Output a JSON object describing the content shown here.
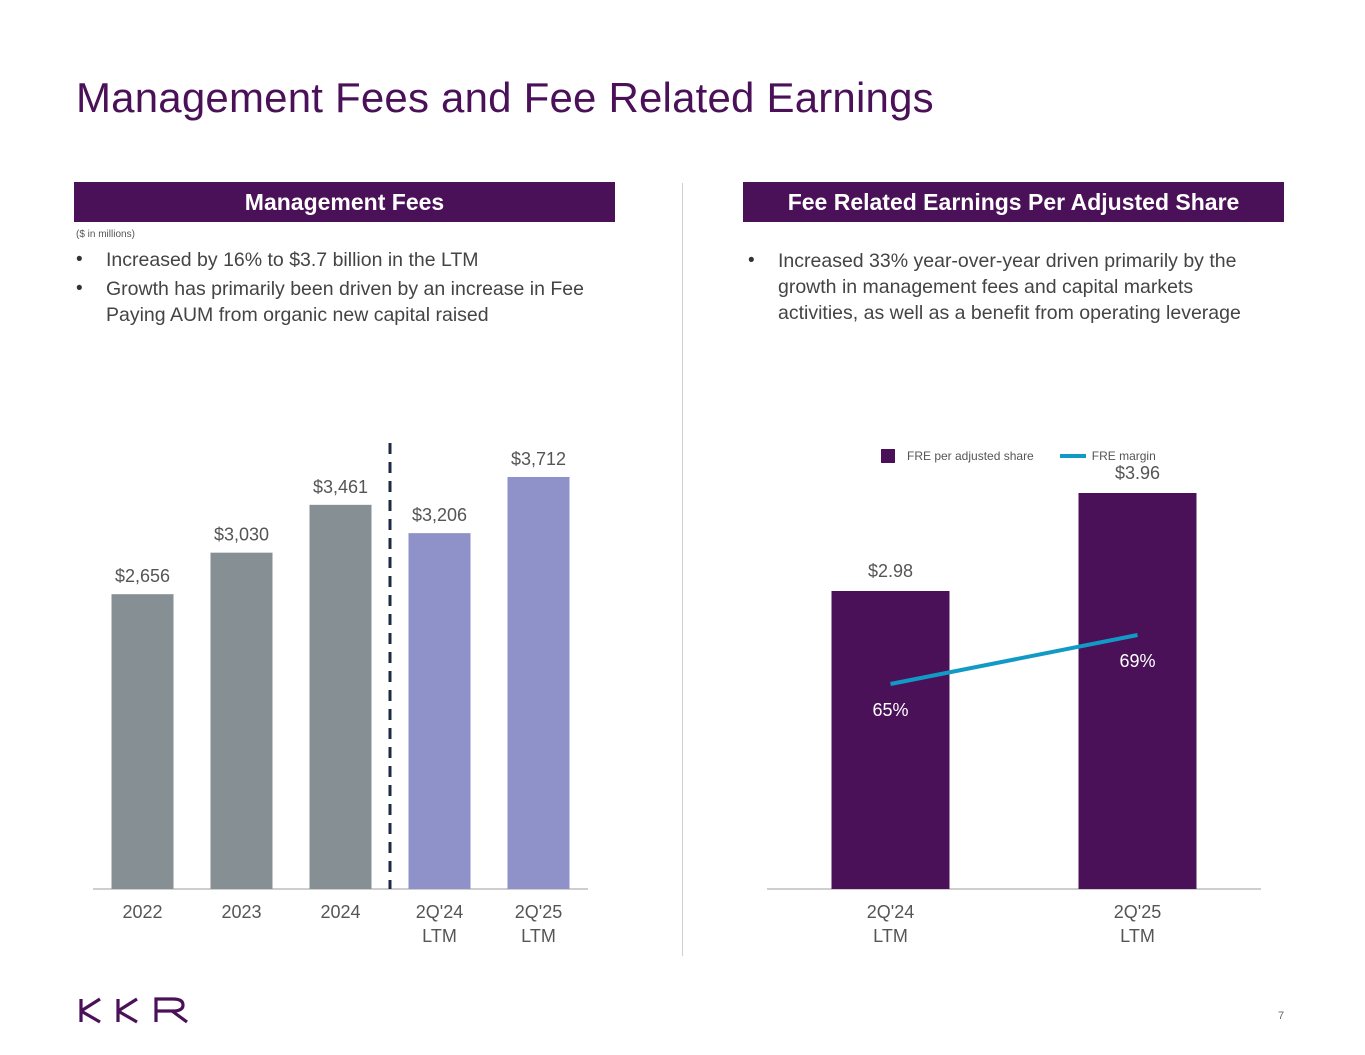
{
  "page": {
    "title": "Management Fees and Fee Related Earnings",
    "page_number": "7",
    "logo_text": "KKR"
  },
  "left_panel": {
    "header": "Management Fees",
    "note": "($ in millions)",
    "bullets": [
      "Increased by 16% to $3.7 billion in the LTM",
      "Growth has primarily been driven by an increase in Fee Paying AUM from organic new capital raised"
    ]
  },
  "right_panel": {
    "header": "Fee Related Earnings Per Adjusted Share",
    "bullets": [
      "Increased 33% year-over-year driven primarily by the growth in management fees and capital markets activities, as well as a benefit from operating leverage"
    ],
    "legend": {
      "bar_label": "FRE per adjusted share",
      "line_label": "FRE margin"
    }
  },
  "colors": {
    "brand": "#4b1158",
    "annual_bar": "#868f94",
    "ltm_bar": "#8f91c9",
    "fre_bar": "#4b1158",
    "margin_line": "#129ac7"
  },
  "chart_data": [
    {
      "type": "bar",
      "title": "Management Fees",
      "units": "$ in millions",
      "categories": [
        "2022",
        "2023",
        "2024",
        "2Q'24\nLTM",
        "2Q'25\nLTM"
      ],
      "values": [
        2656,
        3030,
        3461,
        3206,
        3712
      ],
      "value_labels": [
        "$2,656",
        "$3,030",
        "$3,461",
        "$3,206",
        "$3,712"
      ],
      "series_groups": [
        "annual",
        "annual",
        "annual",
        "ltm",
        "ltm"
      ],
      "divider_after_index": 2,
      "ylim": [
        0,
        4000
      ],
      "grid": false
    },
    {
      "type": "bar+line",
      "title": "Fee Related Earnings Per Adjusted Share",
      "categories": [
        "2Q'24\nLTM",
        "2Q'25\nLTM"
      ],
      "series": [
        {
          "name": "FRE per adjusted share",
          "type": "bar",
          "values": [
            2.98,
            3.96
          ],
          "value_labels": [
            "$2.98",
            "$3.96"
          ]
        },
        {
          "name": "FRE margin",
          "type": "line",
          "values": [
            65,
            69
          ],
          "value_labels": [
            "65%",
            "69%"
          ]
        }
      ],
      "ylim_bar": [
        0,
        4.0
      ],
      "ylim_line": [
        0,
        100
      ],
      "grid": false,
      "legend": "top-center"
    }
  ]
}
